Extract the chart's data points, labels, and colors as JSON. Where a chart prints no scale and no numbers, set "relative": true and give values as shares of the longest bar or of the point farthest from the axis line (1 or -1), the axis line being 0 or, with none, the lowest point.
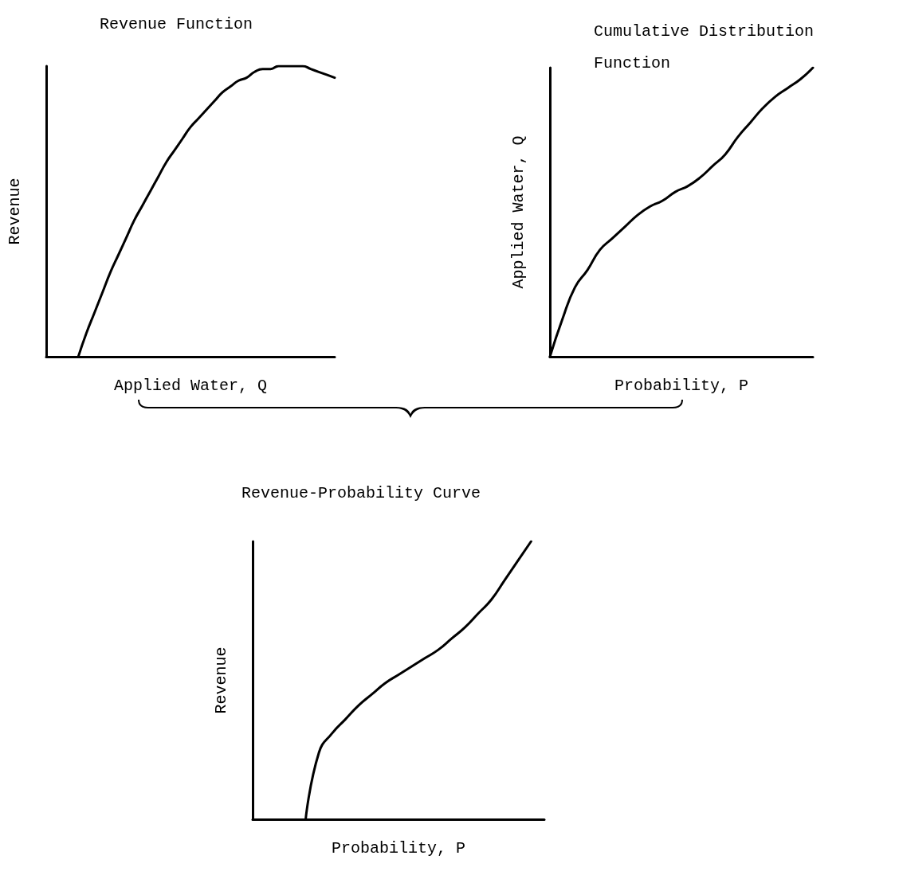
{
  "chart_data": [
    {
      "type": "line",
      "title": "Revenue Function",
      "xlabel": "Applied Water, Q",
      "ylabel": "Revenue",
      "relative": true,
      "categories": [
        null,
        null,
        null,
        null,
        null,
        null,
        null,
        null,
        null,
        null,
        null,
        null,
        null,
        null,
        null,
        null,
        null,
        null,
        null,
        null,
        null,
        null,
        null,
        null,
        null,
        null,
        null,
        null,
        null,
        null,
        null,
        null,
        null,
        null,
        null,
        null,
        null
      ],
      "series": [
        {
          "color": "#000000",
          "values": [
            null,
            null,
            null,
            null,
            0,
            0.08,
            0.15,
            0.22,
            0.29,
            0.35,
            0.41,
            0.47,
            0.52,
            0.57,
            0.62,
            0.67,
            0.71,
            0.75,
            0.79,
            0.82,
            0.85,
            0.88,
            0.91,
            0.93,
            0.95,
            0.96,
            0.98,
            0.99,
            0.99,
            1,
            1,
            1,
            1,
            0.99,
            0.98,
            0.97,
            0.96
          ]
        }
      ]
    },
    {
      "type": "line",
      "title": "Cumulative Distribution Function",
      "xlabel": "Probability, P",
      "ylabel": "Applied Water, Q",
      "relative": true,
      "categories": [
        null,
        null,
        null,
        null,
        null,
        null,
        null,
        null,
        null,
        null,
        null,
        null,
        null,
        null,
        null,
        null,
        null,
        null,
        null,
        null,
        null,
        null
      ],
      "series": [
        {
          "color": "#000000",
          "values": [
            0,
            0.13,
            0.24,
            0.3,
            0.37,
            0.41,
            0.45,
            0.49,
            0.52,
            0.54,
            0.57,
            0.59,
            0.62,
            0.66,
            0.7,
            0.76,
            0.81,
            0.86,
            0.9,
            0.93,
            0.96,
            1
          ]
        }
      ]
    },
    {
      "type": "line",
      "title": "Revenue-Probability Curve",
      "xlabel": "Probability, P",
      "ylabel": "Revenue",
      "relative": true,
      "categories": [
        null,
        null,
        null,
        null,
        null,
        null,
        null,
        null,
        null,
        null,
        null,
        null,
        null,
        null,
        null,
        null,
        null,
        null,
        null,
        null,
        null,
        null,
        null
      ],
      "series": [
        {
          "color": "#000000",
          "values": [
            null,
            null,
            null,
            null,
            0,
            0.24,
            0.31,
            0.36,
            0.41,
            0.45,
            0.49,
            0.52,
            0.55,
            0.58,
            0.61,
            0.65,
            0.69,
            0.74,
            0.79,
            0.86,
            0.93,
            1,
            null
          ]
        }
      ]
    }
  ]
}
